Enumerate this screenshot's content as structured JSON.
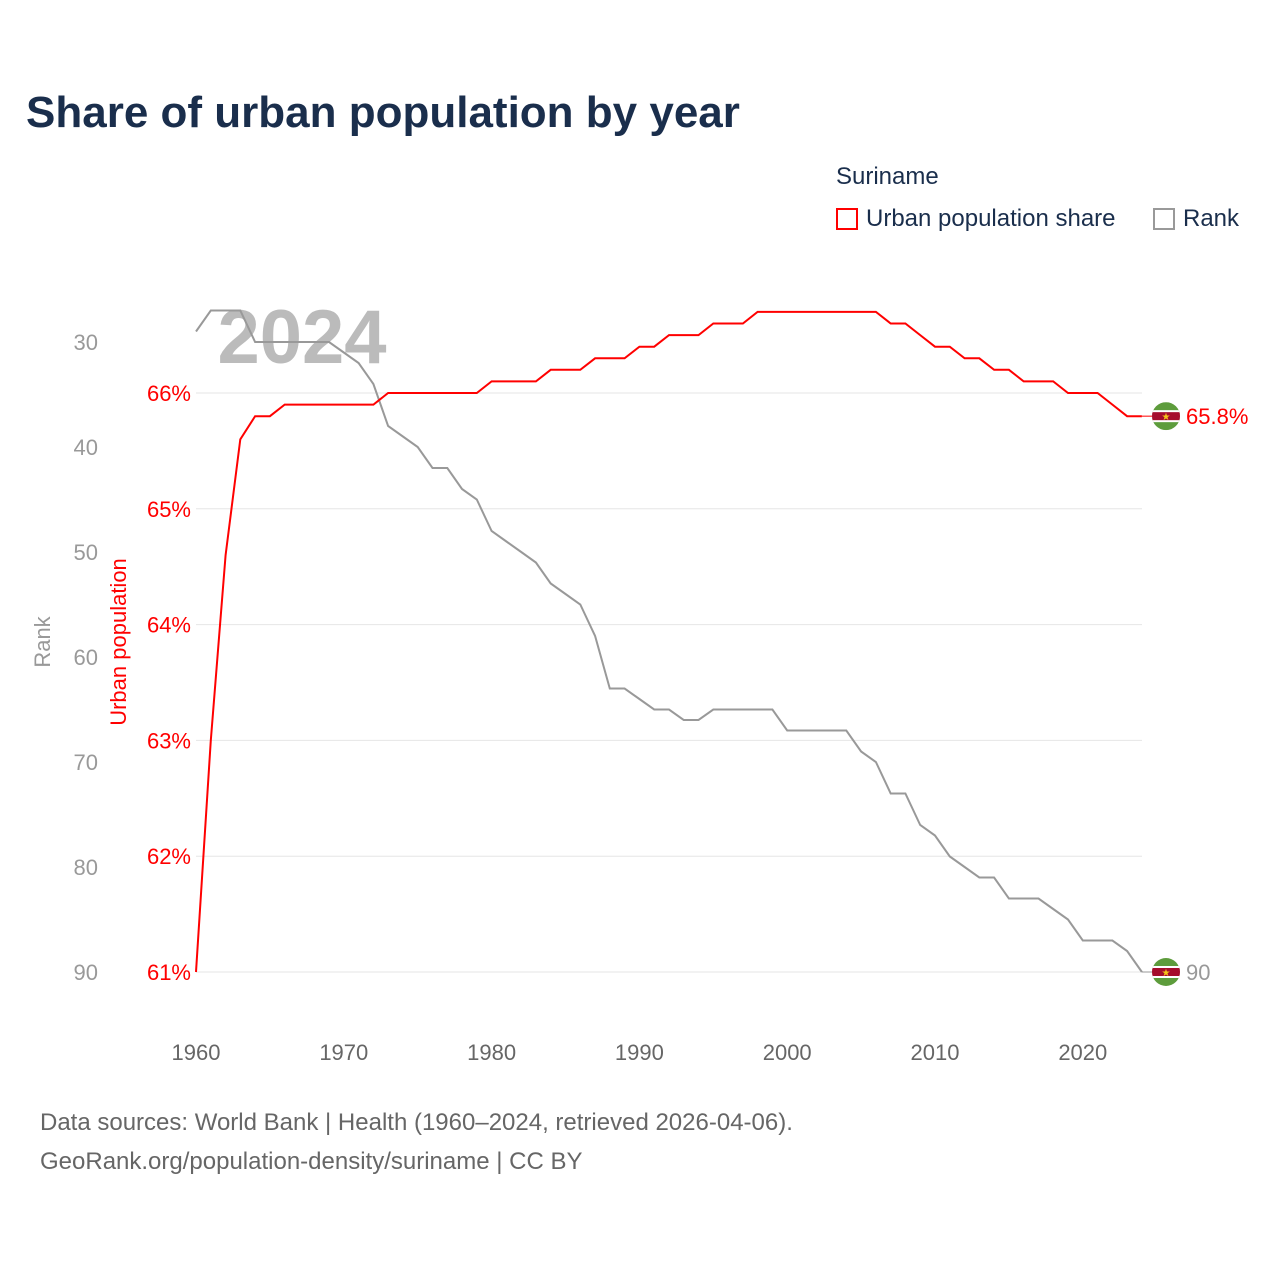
{
  "chart_data": {
    "type": "line",
    "title": "Share of urban population by year",
    "legend_title": "Suriname",
    "legend_position": "top-right",
    "highlight_year_label": "2024",
    "x": [
      1960,
      1961,
      1962,
      1963,
      1964,
      1965,
      1966,
      1967,
      1968,
      1969,
      1970,
      1971,
      1972,
      1973,
      1974,
      1975,
      1976,
      1977,
      1978,
      1979,
      1980,
      1981,
      1982,
      1983,
      1984,
      1985,
      1986,
      1987,
      1988,
      1989,
      1990,
      1991,
      1992,
      1993,
      1994,
      1995,
      1996,
      1997,
      1998,
      1999,
      2000,
      2001,
      2002,
      2003,
      2004,
      2005,
      2006,
      2007,
      2008,
      2009,
      2010,
      2011,
      2012,
      2013,
      2014,
      2015,
      2016,
      2017,
      2018,
      2019,
      2020,
      2021,
      2022,
      2023,
      2024
    ],
    "series": [
      {
        "name": "Urban population share",
        "axis": "left",
        "color": "#ff0000",
        "values": [
          61.0,
          63.0,
          64.6,
          65.6,
          65.8,
          65.8,
          65.9,
          65.9,
          65.9,
          65.9,
          65.9,
          65.9,
          65.9,
          66.0,
          66.0,
          66.0,
          66.0,
          66.0,
          66.0,
          66.0,
          66.1,
          66.1,
          66.1,
          66.1,
          66.2,
          66.2,
          66.2,
          66.3,
          66.3,
          66.3,
          66.4,
          66.4,
          66.5,
          66.5,
          66.5,
          66.6,
          66.6,
          66.6,
          66.7,
          66.7,
          66.7,
          66.7,
          66.7,
          66.7,
          66.7,
          66.7,
          66.7,
          66.6,
          66.6,
          66.5,
          66.4,
          66.4,
          66.3,
          66.3,
          66.2,
          66.2,
          66.1,
          66.1,
          66.1,
          66.0,
          66.0,
          66.0,
          65.9,
          65.8,
          65.8
        ]
      },
      {
        "name": "Rank",
        "axis": "right-inverted",
        "color": "#999999",
        "values": [
          29,
          27,
          27,
          27,
          30,
          30,
          30,
          30,
          30,
          30,
          31,
          32,
          34,
          38,
          39,
          40,
          42,
          42,
          44,
          45,
          48,
          49,
          50,
          51,
          53,
          54,
          55,
          58,
          63,
          63,
          64,
          65,
          65,
          66,
          66,
          65,
          65,
          65,
          65,
          65,
          67,
          67,
          67,
          67,
          67,
          69,
          70,
          73,
          73,
          76,
          77,
          79,
          80,
          81,
          81,
          83,
          83,
          83,
          84,
          85,
          87,
          87,
          87,
          88,
          90
        ]
      }
    ],
    "end_labels": [
      "65.8%",
      "90"
    ],
    "ylabel_left": "Urban population",
    "ylabel_rank": "Rank",
    "ylim_left": [
      61,
      66.7
    ],
    "ylim_rank": [
      90,
      30
    ],
    "yticks_left": [
      "61%",
      "62%",
      "63%",
      "64%",
      "65%",
      "66%"
    ],
    "yticks_left_values": [
      61,
      62,
      63,
      64,
      65,
      66
    ],
    "yticks_rank": [
      "30",
      "40",
      "50",
      "60",
      "70",
      "80",
      "90"
    ],
    "yticks_rank_values": [
      30,
      40,
      50,
      60,
      70,
      80,
      90
    ],
    "xticks": [
      "1960",
      "1970",
      "1980",
      "1990",
      "2000",
      "2010",
      "2020"
    ],
    "xticks_values": [
      1960,
      1970,
      1980,
      1990,
      2000,
      2010,
      2020
    ],
    "grid": true
  },
  "footer": {
    "line1": "Data sources: World Bank | Health (1960–2024, retrieved 2026-04-06).",
    "line2": "GeoRank.org/population-density/suriname | CC BY"
  }
}
